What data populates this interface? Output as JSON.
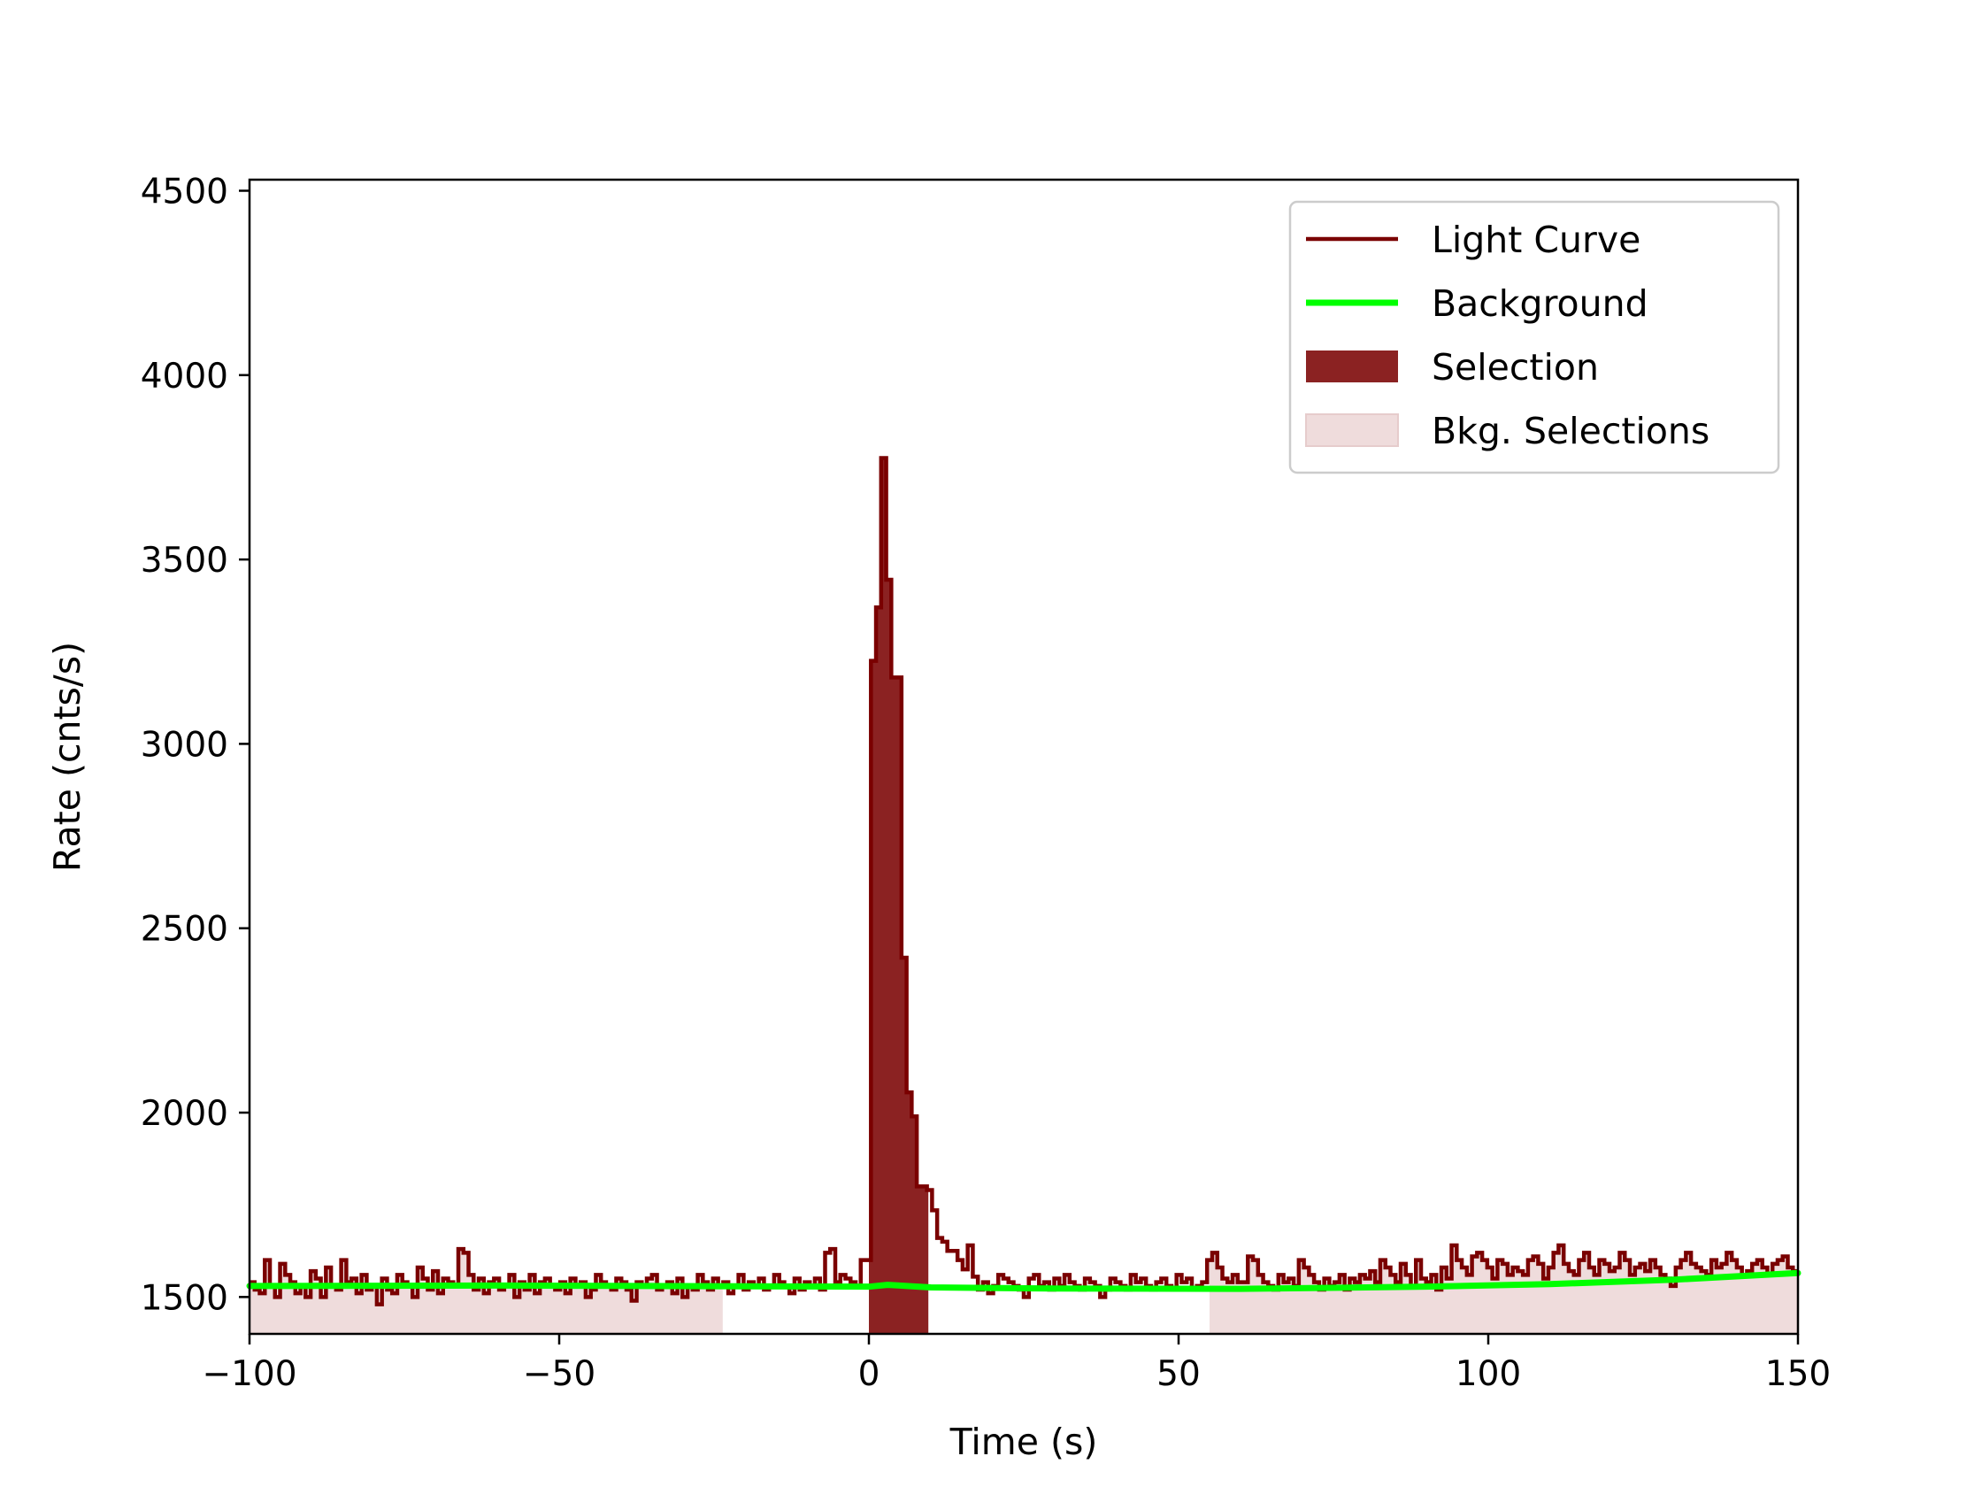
{
  "chart_data": {
    "type": "line",
    "title": "",
    "xlabel": "Time (s)",
    "ylabel": "Rate (cnts/s)",
    "xlim": [
      -100,
      150
    ],
    "ylim": [
      1400,
      4530
    ],
    "x_ticks": [
      -100,
      -50,
      0,
      50,
      100,
      150
    ],
    "x_tick_labels": [
      "−100",
      "−50",
      "0",
      "50",
      "100",
      "150"
    ],
    "y_ticks": [
      1500,
      2000,
      2500,
      3000,
      3500,
      4000,
      4500
    ],
    "y_tick_labels": [
      "1500",
      "2000",
      "2500",
      "3000",
      "3500",
      "4000",
      "4500"
    ],
    "grid": false,
    "legend_position": "top-right",
    "colors": {
      "light_curve": "#7a0000",
      "background": "#00ff00",
      "selection": "#8b2222",
      "bkg_selection": "#efdcdc"
    },
    "series": [
      {
        "name": "Light Curve",
        "style": "step",
        "bin_width": 1.024,
        "bin_start": -100.352,
        "values": [
          1540,
          1520,
          1510,
          1600,
          1530,
          1500,
          1590,
          1560,
          1540,
          1510,
          1530,
          1500,
          1570,
          1550,
          1500,
          1580,
          1530,
          1520,
          1600,
          1540,
          1550,
          1510,
          1560,
          1520,
          1530,
          1480,
          1550,
          1520,
          1510,
          1560,
          1540,
          1530,
          1500,
          1580,
          1550,
          1520,
          1570,
          1510,
          1550,
          1540,
          1530,
          1630,
          1620,
          1560,
          1520,
          1550,
          1510,
          1540,
          1550,
          1520,
          1530,
          1560,
          1500,
          1540,
          1520,
          1560,
          1510,
          1540,
          1550,
          1530,
          1520,
          1540,
          1510,
          1550,
          1530,
          1540,
          1500,
          1520,
          1560,
          1540,
          1530,
          1520,
          1550,
          1540,
          1520,
          1490,
          1540,
          1530,
          1550,
          1560,
          1520,
          1530,
          1540,
          1510,
          1550,
          1500,
          1530,
          1520,
          1560,
          1540,
          1520,
          1550,
          1530,
          1540,
          1510,
          1530,
          1560,
          1520,
          1540,
          1530,
          1550,
          1520,
          1530,
          1560,
          1540,
          1530,
          1510,
          1550,
          1520,
          1540,
          1530,
          1550,
          1520,
          1620,
          1630,
          1540,
          1560,
          1550,
          1540,
          1530,
          1520,
          1580,
          1610,
          1570,
          1550,
          1590,
          1560,
          1600,
          1620,
          1550,
          1560,
          1530,
          1510,
          1540,
          1530,
          1520,
          1550,
          1540,
          1530,
          1520,
          1550,
          1530,
          1560,
          1520,
          1540,
          1510,
          1530,
          1560,
          1550,
          1540,
          1530,
          1520,
          1500,
          1550,
          1560,
          1530,
          1540,
          1520,
          1550,
          1530,
          1560,
          1540,
          1530,
          1520,
          1550,
          1540,
          1530,
          1500,
          1520,
          1550,
          1540,
          1530,
          1520,
          1560,
          1540,
          1550,
          1530,
          1520,
          1540,
          1550,
          1530,
          1520,
          1560,
          1540,
          1550,
          1520,
          1530,
          1540,
          1600,
          1620,
          1580,
          1550,
          1540,
          1560,
          1540,
          1540,
          1610,
          1600,
          1560,
          1540,
          1530,
          1520,
          1560,
          1540,
          1550,
          1530,
          1600,
          1580,
          1560,
          1540,
          1520,
          1550,
          1530,
          1540,
          1560,
          1520,
          1550,
          1540,
          1560,
          1550,
          1570,
          1540,
          1600,
          1580,
          1560,
          1540,
          1590,
          1560,
          1530,
          1600,
          1550,
          1540,
          1560,
          1520,
          1580,
          1550,
          1640,
          1600,
          1580,
          1560,
          1610,
          1620,
          1600,
          1580,
          1550,
          1600,
          1590,
          1560,
          1580,
          1570,
          1560,
          1600,
          1610,
          1590,
          1550,
          1580,
          1620,
          1640,
          1590,
          1570,
          1560,
          1600,
          1620,
          1580,
          1560,
          1600,
          1590,
          1570,
          1580,
          1620,
          1600,
          1560,
          1580,
          1590,
          1570,
          1600,
          1580,
          1560,
          1550,
          1530,
          1580,
          1600,
          1620,
          1590,
          1580,
          1570,
          1560,
          1600,
          1580,
          1590,
          1620,
          1600,
          1580,
          1560,
          1570,
          1590,
          1600,
          1580,
          1560,
          1590,
          1600,
          1610,
          1580,
          1570
        ],
        "values_note": ""
      },
      {
        "name": "Background",
        "style": "line",
        "x": [
          -100,
          -60,
          -20,
          0,
          3,
          10,
          30,
          60,
          90,
          110,
          130,
          150
        ],
        "values": [
          1530,
          1531,
          1529,
          1528,
          1533,
          1526,
          1523,
          1522,
          1528,
          1535,
          1547,
          1565
        ]
      }
    ],
    "light_curve": {
      "segments": [
        {
          "x0": -100,
          "x1": -24.2,
          "values": [
            1553,
            1532,
            1522,
            1604,
            1515,
            1538,
            1591,
            1578,
            1525,
            1517,
            1556,
            1541,
            1502,
            1582,
            1557,
            1529,
            1548,
            1561,
            1511,
            1592,
            1547,
            1544,
            1523,
            1568,
            1530,
            1539,
            1522,
            1496,
            1581,
            1507,
            1539,
            1565,
            1532,
            1560,
            1538,
            1499,
            1548,
            1574,
            1527,
            1596,
            1564,
            1546,
            1522,
            1605,
            1568,
            1576,
            1542,
            1634,
            1626,
            1574,
            1543,
            1560,
            1527,
            1671,
            1588,
            1534,
            1561,
            1642,
            1571,
            1528,
            1629,
            1553,
            1608,
            1566,
            1518,
            1594,
            1578,
            1545,
            1501,
            1582,
            1570,
            1556,
            1532,
            1659,
            1667,
            1579,
            1551,
            1563,
            1532,
            1586,
            1522,
            1574,
            1583,
            1528,
            1589,
            1547,
            1560,
            1579,
            1535,
            1665,
            1568,
            1575,
            1546,
            1527,
            1580,
            1537,
            1542,
            1558,
            1541,
            1570,
            1523,
            1589,
            1532,
            1557,
            1576,
            1526,
            1545,
            1560,
            1518,
            1572,
            1581,
            1540,
            1538,
            1582,
            1553,
            1548,
            1527,
            1563,
            1535,
            1671,
            1588,
            1541
          ]
        }
      ]
    },
    "peak": {
      "x": [
        -1.5,
        0,
        1,
        2,
        3,
        4,
        5,
        6,
        7,
        8,
        9,
        10,
        11,
        12,
        13,
        14,
        15,
        16,
        17
      ],
      "values": [
        1600,
        3225,
        3370,
        3775,
        3445,
        3180,
        2420,
        2055,
        1990,
        1800,
        1790,
        1735,
        1660,
        1650,
        1625,
        1600,
        1575,
        1640,
        1555
      ]
    },
    "selection": {
      "x0": 0,
      "x1": 9.6
    },
    "bkg_selections": [
      {
        "x0": -100,
        "x1": -23.6
      },
      {
        "x0": 55,
        "x1": 150
      }
    ],
    "legend": [
      {
        "label": "Light Curve",
        "kind": "line",
        "color": "#7a0000"
      },
      {
        "label": "Background",
        "kind": "line",
        "color": "#00ff00"
      },
      {
        "label": "Selection",
        "kind": "patch",
        "color": "#8b2222"
      },
      {
        "label": "Bkg. Selections",
        "kind": "patch",
        "color": "#efdcdc"
      }
    ]
  }
}
